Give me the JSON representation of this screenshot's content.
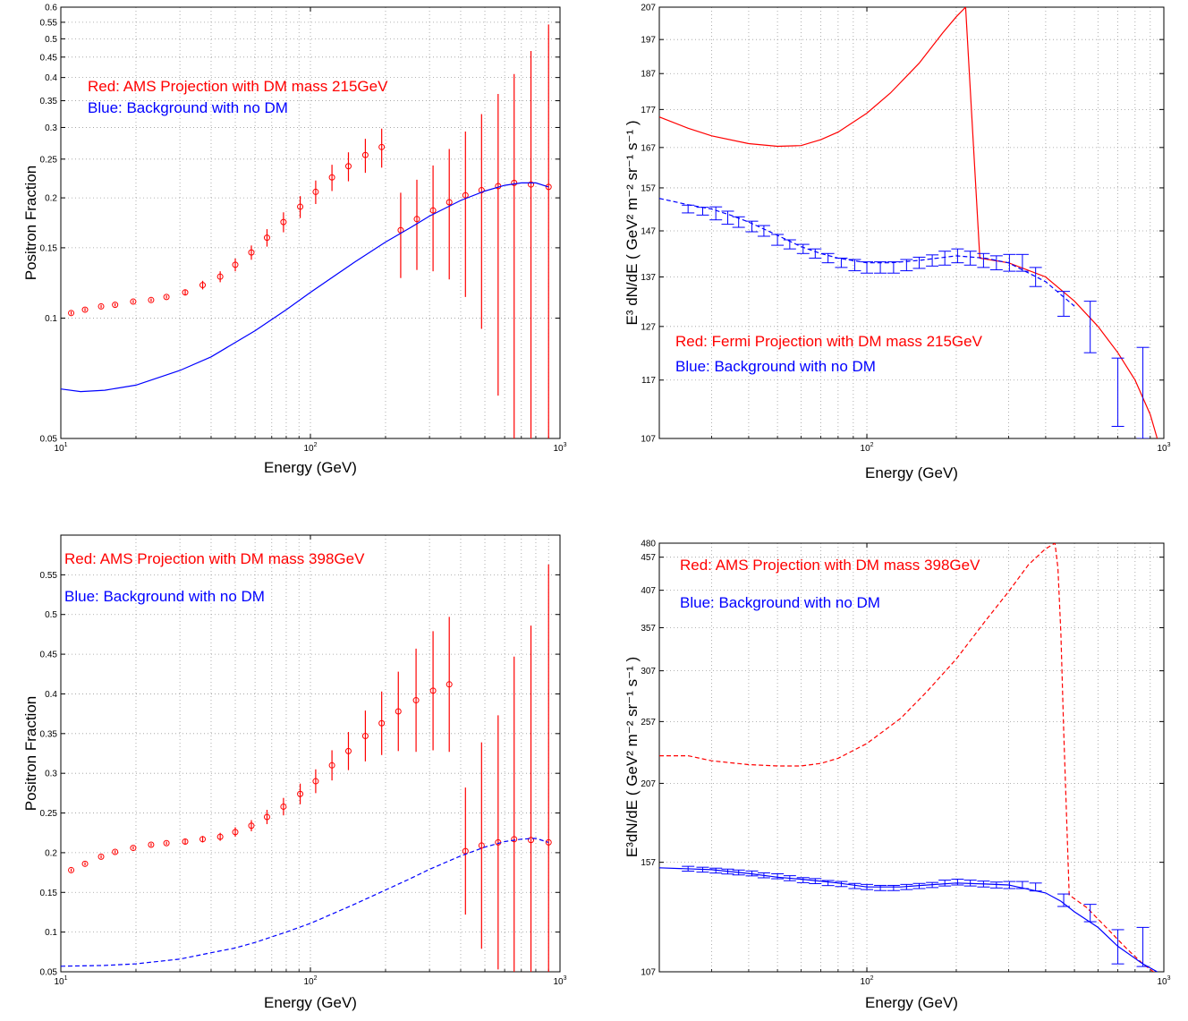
{
  "chart_data": [
    {
      "type": "scatter",
      "title": "",
      "xlabel": "Energy (GeV)",
      "ylabel": "Positron Fraction",
      "x_scale": "log",
      "y_scale": "log",
      "xlim": [
        10,
        1000
      ],
      "ylim": [
        0.05,
        0.6
      ],
      "grid": true,
      "x_ticks": [
        "10",
        "100",
        "1000"
      ],
      "y_ticks": [
        "0.05",
        "0.1",
        "0.15",
        "0.2",
        "0.25",
        "0.3",
        "0.35",
        "0.4",
        "0.45",
        "0.5",
        "0.55",
        "0.6"
      ],
      "legend": [
        {
          "text": "Red: AMS Projection with DM mass 215GeV",
          "color": "#ff0000"
        },
        {
          "text": "Blue: Background with no DM",
          "color": "#0000ff"
        }
      ],
      "series": [
        {
          "kind": "points_errorbars",
          "color": "#ff0000",
          "x": [
            11,
            12.5,
            14.5,
            16.5,
            19.5,
            23,
            26.5,
            31.5,
            37,
            43.5,
            50,
            58,
            67,
            78,
            91,
            105,
            122,
            142,
            166,
            193,
            230,
            267,
            310,
            360,
            418,
            485,
            565,
            655,
            765,
            900
          ],
          "y": [
            0.103,
            0.105,
            0.107,
            0.108,
            0.11,
            0.111,
            0.113,
            0.116,
            0.121,
            0.127,
            0.136,
            0.146,
            0.159,
            0.174,
            0.19,
            0.207,
            0.225,
            0.24,
            0.256,
            0.268,
            0.166,
            0.177,
            0.186,
            0.195,
            0.203,
            0.209,
            0.214,
            0.218,
            0.216,
            0.213
          ],
          "err": [
            0.001,
            0.001,
            0.001,
            0.001,
            0.001,
            0.001,
            0.001,
            0.002,
            0.003,
            0.004,
            0.005,
            0.006,
            0.008,
            0.01,
            0.012,
            0.014,
            0.017,
            0.02,
            0.025,
            0.03,
            0.04,
            0.045,
            0.055,
            0.07,
            0.09,
            0.115,
            0.15,
            0.19,
            0.25,
            0.33
          ]
        },
        {
          "kind": "line",
          "color": "#0000ff",
          "dash": "solid",
          "x": [
            10,
            12,
            15,
            20,
            30,
            40,
            60,
            80,
            100,
            150,
            200,
            250,
            300,
            400,
            500,
            600,
            700,
            800,
            900
          ],
          "y": [
            0.0665,
            0.0655,
            0.066,
            0.068,
            0.074,
            0.08,
            0.093,
            0.105,
            0.116,
            0.138,
            0.155,
            0.168,
            0.18,
            0.197,
            0.208,
            0.215,
            0.218,
            0.218,
            0.213
          ]
        }
      ]
    },
    {
      "type": "line",
      "title": "",
      "xlabel": "Energy (GeV)",
      "ylabel": "E³ dN/dE ( GeV² m⁻² sr⁻¹ s⁻¹ )",
      "x_scale": "log",
      "y_scale": "log",
      "xlim": [
        20,
        1000
      ],
      "ylim": [
        107,
        207
      ],
      "grid": true,
      "x_ticks": [
        "100",
        "1000"
      ],
      "y_ticks": [
        "107",
        "117",
        "127",
        "137",
        "147",
        "157",
        "167",
        "177",
        "187",
        "197",
        "207"
      ],
      "legend": [
        {
          "text": "Red: Fermi Projection with DM mass 215GeV",
          "color": "#ff0000"
        },
        {
          "text": "Blue: Background with no DM",
          "color": "#0000ff"
        }
      ],
      "series": [
        {
          "kind": "line",
          "color": "#ff0000",
          "dash": "solid",
          "x": [
            20,
            25,
            30,
            40,
            50,
            60,
            70,
            80,
            100,
            120,
            150,
            180,
            200,
            215,
            240,
            300,
            400,
            500,
            600,
            700,
            800,
            900,
            950
          ],
          "y": [
            175,
            172,
            170,
            168,
            167.3,
            167.5,
            169,
            171,
            176,
            181.5,
            190,
            199,
            204,
            207,
            141,
            140,
            137,
            132,
            127,
            122,
            117,
            111,
            107
          ]
        },
        {
          "kind": "line",
          "color": "#0000ff",
          "dash": "dashed",
          "x": [
            20,
            25,
            30,
            35,
            40,
            50,
            60,
            70,
            80,
            100,
            120,
            150,
            200,
            250,
            300,
            400,
            500
          ],
          "y": [
            154.5,
            153,
            152,
            150.5,
            149,
            146,
            143.5,
            142,
            141,
            140,
            140,
            140.5,
            141.5,
            141,
            140,
            136,
            131
          ]
        },
        {
          "kind": "errorbars",
          "color": "#0000ff",
          "x": [
            25,
            28,
            31,
            34,
            37,
            41,
            45,
            50,
            55,
            61,
            67,
            74,
            82,
            91,
            100,
            111,
            123,
            136,
            150,
            166,
            183,
            202,
            223,
            247,
            273,
            302,
            334,
            370,
            460,
            565,
            700,
            850
          ],
          "y": [
            152,
            151.5,
            151,
            150,
            149,
            148,
            147,
            145,
            144,
            143,
            142,
            141,
            140,
            139.5,
            139,
            139,
            139,
            139.5,
            140,
            140.5,
            141,
            141.5,
            141,
            140.5,
            140,
            140,
            140,
            137,
            131.5,
            127,
            115,
            115
          ],
          "err": [
            0.9,
            0.9,
            1.5,
            1.5,
            1.2,
            1.2,
            1.2,
            1.2,
            1.0,
            1.0,
            1.0,
            1.0,
            1.0,
            1.2,
            1.2,
            1.2,
            1.2,
            1.2,
            1.2,
            1.2,
            1.5,
            1.5,
            1.5,
            1.5,
            1.5,
            1.8,
            1.8,
            2.0,
            2.5,
            5.0,
            6.0,
            8.0
          ]
        }
      ]
    },
    {
      "type": "scatter",
      "title": "",
      "xlabel": "Energy (GeV)",
      "ylabel": "Positron Fraction",
      "x_scale": "log",
      "y_scale": "linear",
      "xlim": [
        10,
        1000
      ],
      "ylim": [
        0.05,
        0.6
      ],
      "grid": true,
      "x_ticks": [
        "10",
        "100",
        "1000"
      ],
      "y_ticks": [
        "0.05",
        "0.1",
        "0.15",
        "0.2",
        "0.25",
        "0.3",
        "0.35",
        "0.4",
        "0.45",
        "0.5",
        "0.55"
      ],
      "legend": [
        {
          "text": "Red: AMS Projection with DM mass 398GeV",
          "color": "#ff0000"
        },
        {
          "text": "Blue: Background with no DM",
          "color": "#0000ff"
        }
      ],
      "series": [
        {
          "kind": "points_errorbars",
          "color": "#ff0000",
          "x": [
            11,
            12.5,
            14.5,
            16.5,
            19.5,
            23,
            26.5,
            31.5,
            37,
            43.5,
            50,
            58,
            67,
            78,
            91,
            105,
            122,
            142,
            166,
            193,
            225,
            265,
            310,
            360,
            418,
            485,
            565,
            655,
            765,
            900
          ],
          "y": [
            0.178,
            0.186,
            0.195,
            0.201,
            0.206,
            0.21,
            0.212,
            0.214,
            0.217,
            0.22,
            0.226,
            0.234,
            0.245,
            0.258,
            0.274,
            0.29,
            0.31,
            0.328,
            0.347,
            0.363,
            0.378,
            0.392,
            0.404,
            0.412,
            0.202,
            0.209,
            0.213,
            0.217,
            0.216,
            0.213
          ],
          "err": [
            0.002,
            0.002,
            0.002,
            0.002,
            0.002,
            0.002,
            0.002,
            0.003,
            0.004,
            0.005,
            0.006,
            0.007,
            0.009,
            0.011,
            0.013,
            0.015,
            0.019,
            0.024,
            0.032,
            0.04,
            0.05,
            0.065,
            0.075,
            0.085,
            0.08,
            0.13,
            0.16,
            0.23,
            0.27,
            0.35
          ]
        },
        {
          "kind": "line",
          "color": "#0000ff",
          "dash": "dashed",
          "x": [
            10,
            15,
            20,
            30,
            40,
            50,
            60,
            80,
            100,
            150,
            200,
            250,
            300,
            400,
            500,
            600,
            700,
            800,
            900
          ],
          "y": [
            0.057,
            0.058,
            0.06,
            0.066,
            0.074,
            0.08,
            0.087,
            0.1,
            0.111,
            0.135,
            0.153,
            0.167,
            0.179,
            0.196,
            0.207,
            0.214,
            0.217,
            0.218,
            0.213
          ]
        }
      ]
    },
    {
      "type": "line",
      "title": "",
      "xlabel": "Energy (GeV)",
      "ylabel": "E³dN/dE ( GeV² m⁻² sr⁻¹ s⁻¹ )",
      "x_scale": "log",
      "y_scale": "log",
      "xlim": [
        20,
        1000
      ],
      "ylim": [
        107,
        480
      ],
      "grid": true,
      "x_ticks": [
        "100",
        "1000"
      ],
      "y_ticks": [
        "107",
        "157",
        "207",
        "257",
        "307",
        "357",
        "407",
        "457",
        "480"
      ],
      "legend": [
        {
          "text": "Red: AMS Projection with DM mass 398GeV",
          "color": "#ff0000"
        },
        {
          "text": "Blue: Background with no DM",
          "color": "#0000ff"
        }
      ],
      "series": [
        {
          "kind": "line",
          "color": "#ff0000",
          "dash": "dashed",
          "x": [
            20,
            25,
            30,
            40,
            50,
            60,
            70,
            80,
            100,
            130,
            160,
            200,
            250,
            300,
            350,
            398,
            430,
            440,
            450,
            460,
            480,
            550,
            650,
            750,
            850,
            950
          ],
          "y": [
            228,
            228,
            224,
            221,
            220,
            220,
            222,
            226,
            238,
            260,
            286,
            320,
            365,
            405,
            445,
            470,
            480,
            440,
            350,
            250,
            140,
            134,
            124,
            116,
            110,
            106
          ]
        },
        {
          "kind": "line",
          "color": "#0000ff",
          "dash": "solid",
          "x": [
            20,
            30,
            40,
            50,
            60,
            80,
            100,
            130,
            160,
            200,
            250,
            300,
            400,
            450,
            500,
            600,
            700,
            850,
            950
          ],
          "y": [
            154,
            153,
            151,
            149,
            148,
            146,
            144,
            144,
            145,
            146,
            145.5,
            145,
            141,
            137,
            132,
            125,
            117,
            110,
            107
          ]
        },
        {
          "kind": "errorbars",
          "color": "#0000ff",
          "x": [
            25,
            28,
            31,
            34,
            37,
            41,
            45,
            50,
            55,
            61,
            67,
            74,
            82,
            91,
            100,
            111,
            123,
            136,
            150,
            166,
            183,
            202,
            223,
            247,
            273,
            302,
            334,
            370,
            460,
            565,
            700,
            850
          ],
          "y": [
            153.5,
            153,
            152.5,
            152,
            151.5,
            151,
            150,
            149.5,
            148.5,
            147.5,
            147,
            146,
            145.5,
            144.5,
            144,
            143.5,
            143.5,
            144,
            144.5,
            145,
            146,
            146.5,
            146,
            145.5,
            145,
            145,
            145,
            144,
            137.5,
            131.5,
            117,
            117
          ],
          "err": [
            1.3,
            1.3,
            1.3,
            1.3,
            1.3,
            1.3,
            1.3,
            1.3,
            1.3,
            1.3,
            1.3,
            1.3,
            1.3,
            1.3,
            1.3,
            1.3,
            1.3,
            1.3,
            1.3,
            1.3,
            1.5,
            1.5,
            1.5,
            1.5,
            1.5,
            1.8,
            1.8,
            2.0,
            3.0,
            4.0,
            7.0,
            8.0
          ]
        }
      ]
    }
  ]
}
